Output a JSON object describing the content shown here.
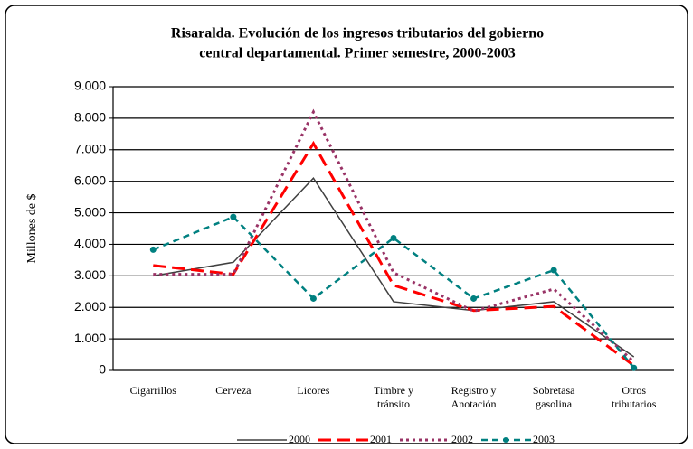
{
  "chart_data": {
    "type": "line",
    "title": [
      "Risaralda. Evolución de los ingresos tributarios del gobierno",
      "central departamental. Primer semestre, 2000-2003"
    ],
    "y_label": "Millones de $",
    "categories": [
      [
        "Cigarrillos"
      ],
      [
        "Cerveza"
      ],
      [
        "Licores"
      ],
      [
        "Timbre y",
        "tránsito"
      ],
      [
        "Registro y",
        "Anotación"
      ],
      [
        "Sobretasa",
        "gasolina"
      ],
      [
        "Otros",
        "tributarios"
      ]
    ],
    "series": [
      {
        "name": "2000",
        "color": "#404040",
        "values": [
          3000,
          3430,
          6100,
          2180,
          1900,
          2180,
          430
        ]
      },
      {
        "name": "2001",
        "color": "#ff0000",
        "values": [
          3330,
          3050,
          7200,
          2700,
          1900,
          2030,
          150
        ]
      },
      {
        "name": "2002",
        "color": "#993366",
        "values": [
          3050,
          3050,
          8200,
          3100,
          1880,
          2580,
          270
        ]
      },
      {
        "name": "2003",
        "color": "#008080",
        "values": [
          3830,
          4870,
          2280,
          4200,
          2280,
          3180,
          80
        ]
      }
    ],
    "ylim": [
      0,
      9000
    ],
    "yticks": [
      0,
      {
        "value": 1000,
        "label": "1.000"
      },
      {
        "value": 2000,
        "label": "2.000"
      },
      {
        "value": 3000,
        "label": "3.000"
      },
      {
        "value": 4000,
        "label": "4.000"
      },
      {
        "value": 5000,
        "label": "5.000"
      },
      {
        "value": 6000,
        "label": "6.000"
      },
      {
        "value": 7000,
        "label": "7.000"
      },
      {
        "value": 8000,
        "label": "8.000"
      },
      {
        "value": 9000,
        "label": "9.000"
      }
    ],
    "grid": true
  }
}
